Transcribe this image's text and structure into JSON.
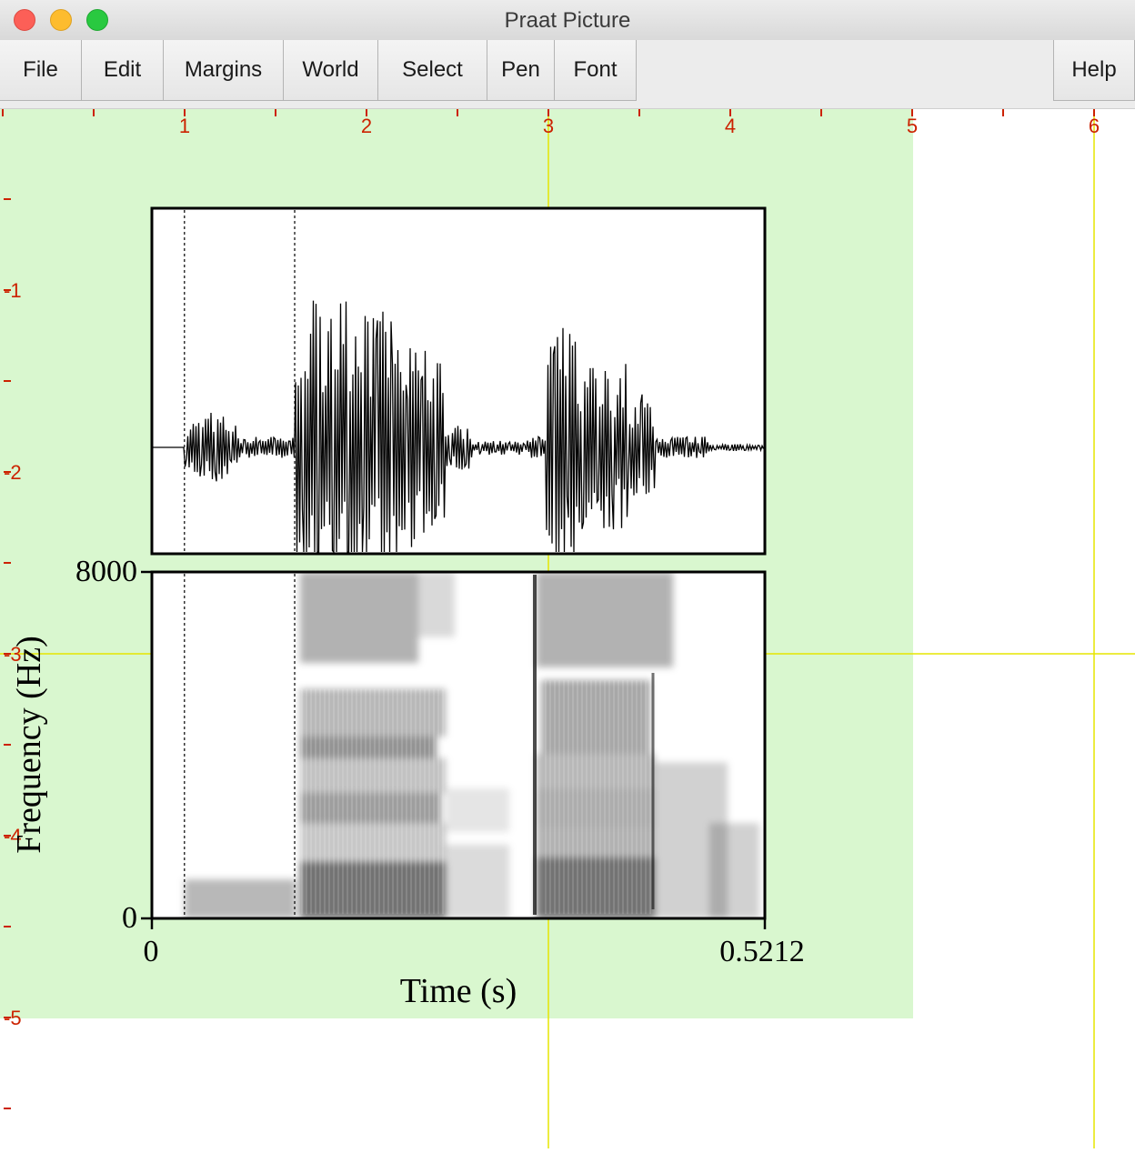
{
  "window": {
    "title": "Praat Picture"
  },
  "menu": {
    "file": "File",
    "edit": "Edit",
    "margins": "Margins",
    "world": "World",
    "select": "Select",
    "pen": "Pen",
    "font": "Font",
    "help": "Help"
  },
  "ruler": {
    "horizontal_labels": [
      "1",
      "2",
      "3",
      "4",
      "5",
      "6"
    ],
    "vertical_labels": [
      "-1",
      "-2",
      "-3",
      "-4",
      "-5"
    ],
    "color": "#cc2200"
  },
  "colors": {
    "selection": "#d9f7cf",
    "crosshair": "#e6e600",
    "ink": "#000000"
  },
  "plot": {
    "y_top_label": "8000",
    "y_bottom_label": "0",
    "x_left_label": "0",
    "x_right_label": "0.5212",
    "y_axis_title": "Frequency (Hz)",
    "x_axis_title": "Time (s)"
  },
  "chart_data": {
    "type": "waveform_spectrogram",
    "time_range_s": [
      0,
      0.5212
    ],
    "frequency_range_hz": [
      0,
      8000
    ],
    "boundaries_s": [
      0.027,
      0.121
    ]
  }
}
